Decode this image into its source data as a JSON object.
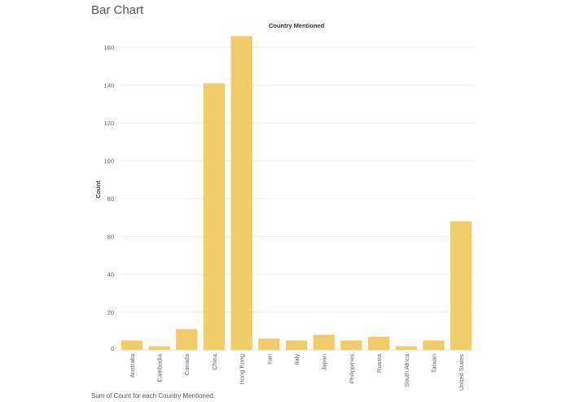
{
  "header": {
    "title": "Bar Chart"
  },
  "caption": "Sum of Count for each Country Mentioned.",
  "chart_data": {
    "type": "bar",
    "title": "Country Mentioned",
    "xlabel": "",
    "ylabel": "Count",
    "categories": [
      "Australia",
      "Cambodia",
      "Canada",
      "China",
      "Hong Kong",
      "Iran",
      "Italy",
      "Japan",
      "Philippines",
      "Russia",
      "South Africa",
      "Taiwan",
      "United States"
    ],
    "values": [
      5,
      2,
      11,
      141,
      166,
      6,
      5,
      8,
      5,
      7,
      2,
      5,
      68
    ],
    "ylim": [
      0,
      170
    ],
    "yticks": [
      0,
      20,
      40,
      60,
      80,
      100,
      120,
      140,
      160
    ],
    "grid": true,
    "bar_color": "#f0cd68"
  }
}
